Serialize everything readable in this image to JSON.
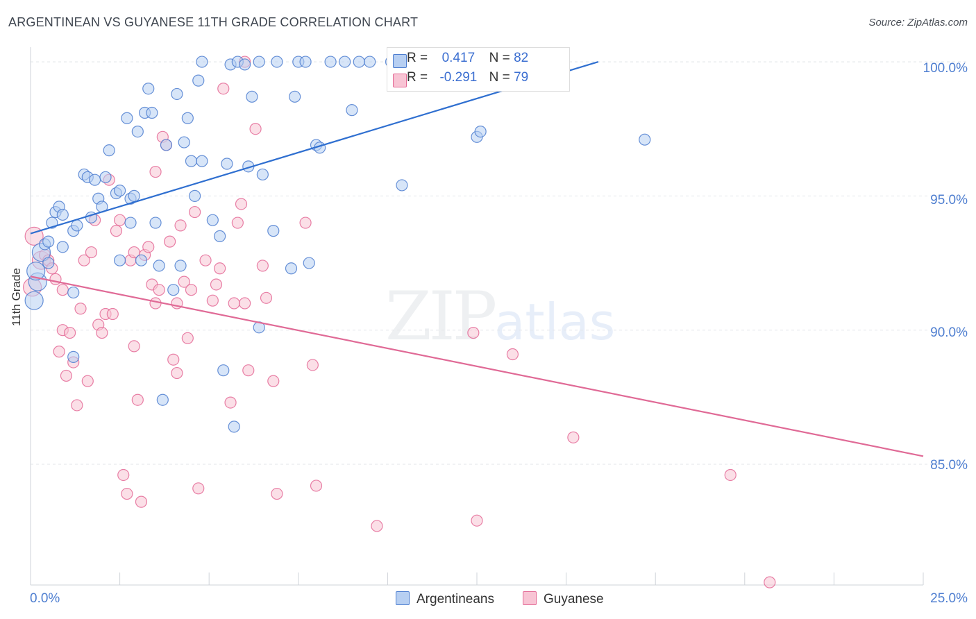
{
  "chart_title": "ARGENTINEAN VS GUYANESE 11TH GRADE CORRELATION CHART",
  "source": "Source: ZipAtlas.com",
  "watermark": {
    "zip": "ZIP",
    "atlas": "atlas"
  },
  "colors": {
    "blue": "#4e7ed0",
    "blue_fill": "#b7cff2",
    "blue_line": "#2f6fd0",
    "pink": "#e46a96",
    "pink_fill": "#f8c4d4",
    "pink_line": "#e06a96"
  },
  "stats": [
    {
      "r_label": "R =",
      "r": "0.417",
      "n_label": "N =",
      "n": "82"
    },
    {
      "r_label": "R =",
      "r": "-0.291",
      "n_label": "N =",
      "n": "79"
    }
  ],
  "legend": [
    "Argentineans",
    "Guyanese"
  ],
  "chart_data": {
    "type": "scatter",
    "xlabel": "",
    "ylabel": "11th Grade",
    "xlim": [
      0,
      25
    ],
    "ylim": [
      80.5,
      100.7
    ],
    "x_tick_labels": [
      "0.0%",
      "25.0%"
    ],
    "y_ticks": [
      85,
      90,
      95,
      100
    ],
    "y_tick_labels": [
      "85.0%",
      "90.0%",
      "95.0%",
      "100.0%"
    ],
    "grid": true,
    "legend_position": "bottom",
    "series": [
      {
        "name": "Argentineans",
        "trend": {
          "x0": 0,
          "y0": 93.6,
          "x1": 15.9,
          "y1": 100.0
        },
        "points": [
          [
            0.1,
            91.1
          ],
          [
            0.2,
            91.8
          ],
          [
            0.15,
            92.2
          ],
          [
            0.3,
            92.9
          ],
          [
            0.4,
            93.2
          ],
          [
            0.5,
            92.5
          ],
          [
            0.6,
            94.0
          ],
          [
            0.7,
            94.4
          ],
          [
            0.8,
            94.6
          ],
          [
            0.9,
            94.3
          ],
          [
            0.9,
            93.1
          ],
          [
            1.2,
            93.7
          ],
          [
            1.3,
            93.9
          ],
          [
            1.5,
            95.8
          ],
          [
            1.6,
            95.7
          ],
          [
            1.7,
            94.2
          ],
          [
            1.8,
            95.6
          ],
          [
            1.9,
            94.9
          ],
          [
            2.0,
            94.6
          ],
          [
            2.1,
            95.7
          ],
          [
            2.2,
            96.7
          ],
          [
            2.4,
            95.1
          ],
          [
            2.5,
            95.2
          ],
          [
            2.7,
            97.9
          ],
          [
            2.8,
            94.9
          ],
          [
            2.8,
            94.0
          ],
          [
            2.9,
            95.0
          ],
          [
            3.0,
            97.4
          ],
          [
            3.2,
            98.1
          ],
          [
            3.3,
            99.0
          ],
          [
            3.4,
            98.1
          ],
          [
            3.5,
            94.0
          ],
          [
            3.6,
            92.4
          ],
          [
            3.8,
            96.9
          ],
          [
            4.1,
            98.8
          ],
          [
            4.3,
            97.0
          ],
          [
            4.4,
            97.9
          ],
          [
            4.5,
            96.3
          ],
          [
            4.6,
            95.0
          ],
          [
            4.8,
            96.3
          ],
          [
            4.7,
            99.3
          ],
          [
            4.8,
            100.0
          ],
          [
            5.1,
            94.1
          ],
          [
            5.3,
            93.5
          ],
          [
            5.5,
            96.2
          ],
          [
            5.6,
            99.9
          ],
          [
            5.8,
            100.0
          ],
          [
            6.0,
            99.9
          ],
          [
            6.1,
            96.1
          ],
          [
            6.2,
            98.7
          ],
          [
            6.4,
            100.0
          ],
          [
            6.5,
            95.8
          ],
          [
            6.8,
            93.7
          ],
          [
            6.9,
            100.0
          ],
          [
            7.3,
            92.3
          ],
          [
            7.4,
            98.7
          ],
          [
            7.5,
            100.0
          ],
          [
            7.7,
            100.0
          ],
          [
            7.8,
            92.5
          ],
          [
            8.0,
            96.9
          ],
          [
            8.1,
            96.8
          ],
          [
            8.4,
            100.0
          ],
          [
            8.8,
            100.0
          ],
          [
            9.0,
            98.2
          ],
          [
            9.2,
            100.0
          ],
          [
            9.5,
            100.0
          ],
          [
            10.1,
            100.0
          ],
          [
            10.4,
            95.4
          ],
          [
            12.5,
            97.2
          ],
          [
            12.6,
            97.4
          ],
          [
            17.2,
            97.1
          ],
          [
            1.2,
            89.0
          ],
          [
            3.7,
            87.4
          ],
          [
            5.4,
            88.5
          ],
          [
            5.7,
            86.4
          ],
          [
            6.4,
            90.1
          ],
          [
            1.2,
            91.4
          ],
          [
            2.5,
            92.6
          ],
          [
            3.1,
            92.6
          ],
          [
            4.0,
            91.5
          ],
          [
            4.2,
            92.4
          ],
          [
            0.5,
            93.3
          ]
        ]
      },
      {
        "name": "Guyanese",
        "trend": {
          "x0": 0,
          "y0": 92.0,
          "x1": 25,
          "y1": 85.3
        },
        "points": [
          [
            0.05,
            91.6
          ],
          [
            0.1,
            93.5
          ],
          [
            0.3,
            92.6
          ],
          [
            0.4,
            92.8
          ],
          [
            0.5,
            92.6
          ],
          [
            0.6,
            92.3
          ],
          [
            0.7,
            91.9
          ],
          [
            0.8,
            89.2
          ],
          [
            0.9,
            90.0
          ],
          [
            0.9,
            91.5
          ],
          [
            1.0,
            88.3
          ],
          [
            1.1,
            89.9
          ],
          [
            1.2,
            88.8
          ],
          [
            1.3,
            87.2
          ],
          [
            1.4,
            90.8
          ],
          [
            1.5,
            92.6
          ],
          [
            1.6,
            88.1
          ],
          [
            1.7,
            92.9
          ],
          [
            1.8,
            94.1
          ],
          [
            1.9,
            90.2
          ],
          [
            2.0,
            89.9
          ],
          [
            2.1,
            90.6
          ],
          [
            2.2,
            95.6
          ],
          [
            2.3,
            90.6
          ],
          [
            2.4,
            93.7
          ],
          [
            2.5,
            94.1
          ],
          [
            2.6,
            84.6
          ],
          [
            2.7,
            83.9
          ],
          [
            2.8,
            92.6
          ],
          [
            2.9,
            89.4
          ],
          [
            3.0,
            87.4
          ],
          [
            3.1,
            83.6
          ],
          [
            3.2,
            92.8
          ],
          [
            3.3,
            93.1
          ],
          [
            3.4,
            91.7
          ],
          [
            3.5,
            91.0
          ],
          [
            3.5,
            95.9
          ],
          [
            3.6,
            91.5
          ],
          [
            3.7,
            97.2
          ],
          [
            3.8,
            96.9
          ],
          [
            3.9,
            93.3
          ],
          [
            4.0,
            88.9
          ],
          [
            4.1,
            88.4
          ],
          [
            4.2,
            93.9
          ],
          [
            4.3,
            91.8
          ],
          [
            4.4,
            89.7
          ],
          [
            4.5,
            91.5
          ],
          [
            4.6,
            94.4
          ],
          [
            4.7,
            84.1
          ],
          [
            4.9,
            92.6
          ],
          [
            5.1,
            91.1
          ],
          [
            5.2,
            91.7
          ],
          [
            5.3,
            92.3
          ],
          [
            5.4,
            99.0
          ],
          [
            5.6,
            87.3
          ],
          [
            5.8,
            94.0
          ],
          [
            5.7,
            91.0
          ],
          [
            5.9,
            94.7
          ],
          [
            6.0,
            100.0
          ],
          [
            6.1,
            88.5
          ],
          [
            6.3,
            97.5
          ],
          [
            6.5,
            92.4
          ],
          [
            6.6,
            91.2
          ],
          [
            6.8,
            88.1
          ],
          [
            6.9,
            83.9
          ],
          [
            7.7,
            94.0
          ],
          [
            7.9,
            88.7
          ],
          [
            8.0,
            84.2
          ],
          [
            9.7,
            82.7
          ],
          [
            12.4,
            89.9
          ],
          [
            13.5,
            89.1
          ],
          [
            14.0,
            100.0
          ],
          [
            15.2,
            86.0
          ],
          [
            19.6,
            84.6
          ],
          [
            20.7,
            80.6
          ],
          [
            12.5,
            82.9
          ],
          [
            4.1,
            91.0
          ],
          [
            2.9,
            92.9
          ],
          [
            6.0,
            91.0
          ]
        ]
      }
    ]
  }
}
